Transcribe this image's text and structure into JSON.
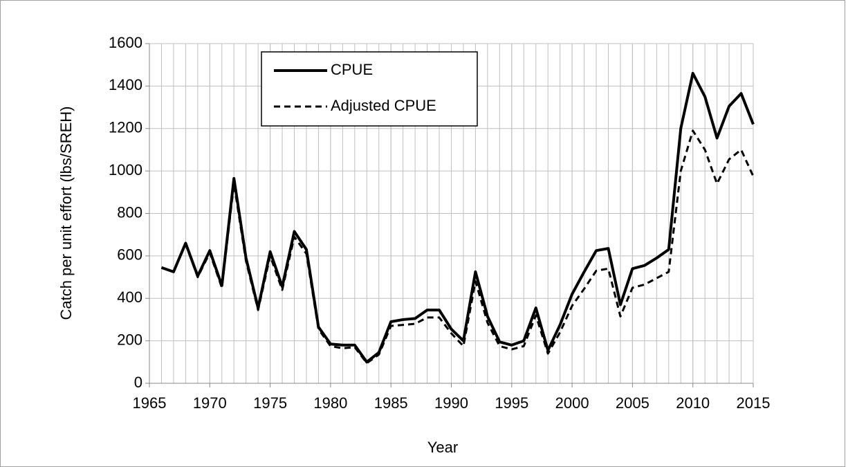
{
  "chart_data": {
    "type": "line",
    "xlabel": "Year",
    "ylabel": "Catch per unit effort (lbs/SREH)",
    "x": [
      1966,
      1967,
      1968,
      1969,
      1970,
      1971,
      1972,
      1973,
      1974,
      1975,
      1976,
      1977,
      1978,
      1979,
      1980,
      1981,
      1982,
      1983,
      1984,
      1985,
      1986,
      1987,
      1988,
      1989,
      1990,
      1991,
      1992,
      1993,
      1994,
      1995,
      1996,
      1997,
      1998,
      1999,
      2000,
      2001,
      2002,
      2003,
      2004,
      2005,
      2006,
      2007,
      2008,
      2009,
      2010,
      2011,
      2012,
      2013,
      2014,
      2015
    ],
    "series": [
      {
        "name": "CPUE",
        "color": "#000000",
        "dash": "solid",
        "values": [
          545,
          525,
          660,
          505,
          625,
          460,
          965,
          590,
          355,
          620,
          455,
          715,
          630,
          265,
          185,
          180,
          180,
          100,
          145,
          290,
          300,
          305,
          345,
          345,
          255,
          200,
          525,
          315,
          195,
          180,
          200,
          355,
          155,
          275,
          420,
          525,
          625,
          635,
          370,
          540,
          555,
          590,
          630,
          1200,
          1460,
          1350,
          1155,
          1305,
          1365,
          1220
        ]
      },
      {
        "name": "Adjusted CPUE",
        "color": "#000000",
        "dash": "dashed",
        "values": [
          545,
          525,
          655,
          500,
          615,
          450,
          940,
          575,
          345,
          600,
          440,
          690,
          610,
          255,
          175,
          165,
          170,
          95,
          135,
          270,
          275,
          280,
          310,
          310,
          235,
          175,
          480,
          285,
          175,
          160,
          175,
          320,
          140,
          240,
          365,
          445,
          530,
          540,
          315,
          450,
          465,
          495,
          525,
          1000,
          1190,
          1100,
          940,
          1055,
          1100,
          975
        ]
      }
    ],
    "xlim": [
      1965,
      2015
    ],
    "xticks": [
      1965,
      1970,
      1975,
      1980,
      1985,
      1990,
      1995,
      2000,
      2005,
      2010,
      2015
    ],
    "ylim": [
      0,
      1600
    ],
    "yticks": [
      0,
      200,
      400,
      600,
      800,
      1000,
      1200,
      1400,
      1600
    ],
    "grid": true,
    "legend": "upper left"
  }
}
